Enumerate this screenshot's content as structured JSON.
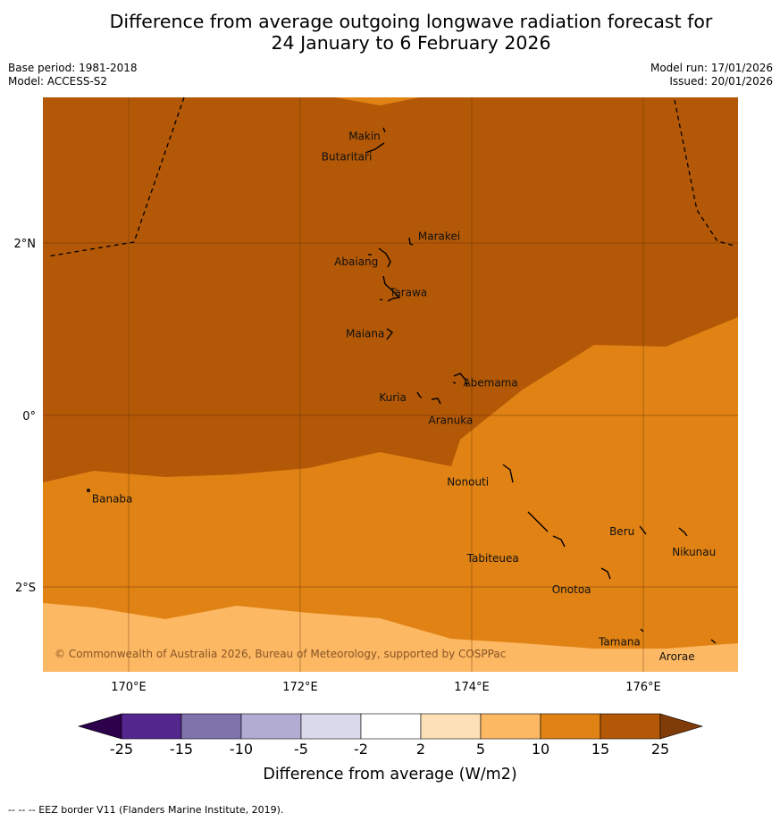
{
  "title": {
    "line1": "Difference from average outgoing longwave radiation forecast for",
    "line2": "24 January to 6 February 2026"
  },
  "meta_left": {
    "base_period": "Base period: 1981-2018",
    "model": "Model: ACCESS-S2"
  },
  "meta_right": {
    "model_run": "Model run: 17/01/2026",
    "issued": "Issued: 20/01/2026"
  },
  "map": {
    "x_ticks": [
      "170°E",
      "172°E",
      "174°E",
      "176°E"
    ],
    "y_ticks": [
      "2°N",
      "0°",
      "2°S"
    ],
    "places": [
      {
        "name": "Makin",
        "lon": 172.95,
        "lat": 3.28
      },
      {
        "name": "Butaritari",
        "lon": 172.8,
        "lat": 3.07
      },
      {
        "name": "Marakei",
        "lon": 173.28,
        "lat": 2.0
      },
      {
        "name": "Abaiang",
        "lon": 172.95,
        "lat": 1.83
      },
      {
        "name": "Tarawa",
        "lon": 173.0,
        "lat": 1.43
      },
      {
        "name": "Maiana",
        "lon": 173.0,
        "lat": 0.93
      },
      {
        "name": "Abemama",
        "lon": 173.88,
        "lat": 0.4
      },
      {
        "name": "Kuria",
        "lon": 173.42,
        "lat": 0.22
      },
      {
        "name": "Aranuka",
        "lon": 173.62,
        "lat": 0.16
      },
      {
        "name": "Nonouti",
        "lon": 174.45,
        "lat": -0.65
      },
      {
        "name": "Banaba",
        "lon": 169.53,
        "lat": -0.87
      },
      {
        "name": "Tabiteuea",
        "lon": 174.83,
        "lat": -1.35
      },
      {
        "name": "Beru",
        "lon": 175.98,
        "lat": -1.33
      },
      {
        "name": "Nikunau",
        "lon": 176.45,
        "lat": -1.35
      },
      {
        "name": "Onotoa",
        "lon": 175.57,
        "lat": -1.85
      },
      {
        "name": "Tamana",
        "lon": 175.98,
        "lat": -2.5
      },
      {
        "name": "Arorae",
        "lon": 176.82,
        "lat": -2.65
      }
    ],
    "credit": "© Commonwealth of Australia 2026, Bureau of Meteorology, supported by COSPPac"
  },
  "colorbar": {
    "bins": [
      {
        "from": "-25",
        "to": "-15",
        "color": "#54278f"
      },
      {
        "from": "-15",
        "to": "-10",
        "color": "#8073ac"
      },
      {
        "from": "-10",
        "to": "-5",
        "color": "#b2abd2"
      },
      {
        "from": "-5",
        "to": "-2",
        "color": "#d8daeb"
      },
      {
        "from": "-2",
        "to": "2",
        "color": "#ffffff"
      },
      {
        "from": "2",
        "to": "5",
        "color": "#fee0b6"
      },
      {
        "from": "5",
        "to": "10",
        "color": "#fdb863"
      },
      {
        "from": "10",
        "to": "15",
        "color": "#e08214"
      },
      {
        "from": "15",
        "to": "25",
        "color": "#b35806"
      }
    ],
    "tick_labels": [
      "-25",
      "-15",
      "-10",
      "-5",
      "-2",
      "2",
      "5",
      "10",
      "15",
      "25"
    ],
    "under_color": "#2d004b",
    "over_color": "#7f3b08",
    "label": "Difference from average (W/m2)"
  },
  "footer": "--  --  -- EEZ border V11 (Flanders Marine Institute, 2019)."
}
